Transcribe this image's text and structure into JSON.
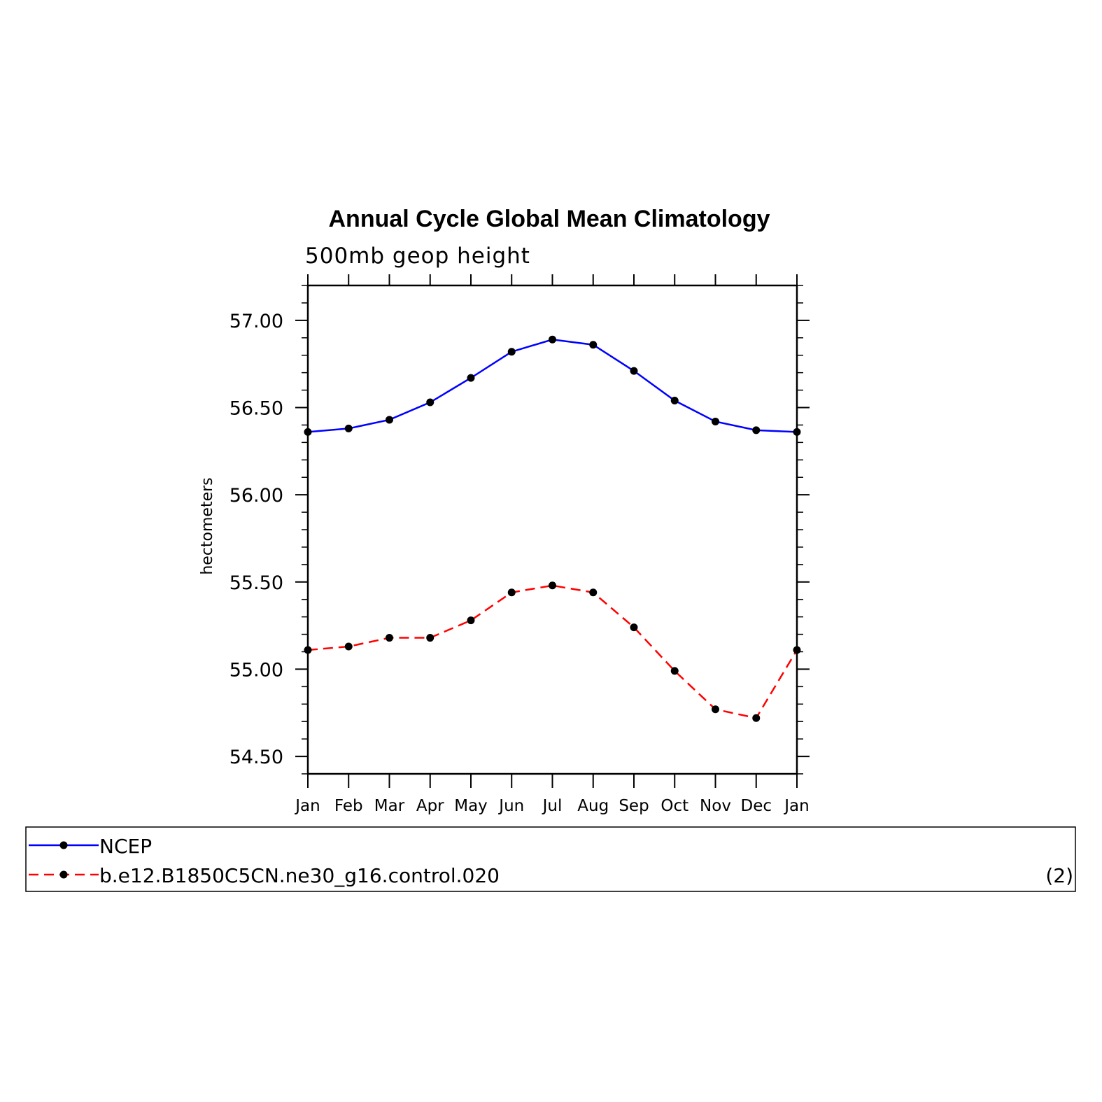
{
  "chart_data": {
    "type": "line",
    "title": "Annual Cycle Global Mean Climatology",
    "subtitle": "500mb geop height",
    "ylabel": "hectometers",
    "ylim": [
      54.4,
      57.2
    ],
    "yticks": [
      "57.00",
      "56.50",
      "56.00",
      "55.50",
      "55.00",
      "54.50"
    ],
    "categories": [
      "Jan",
      "Feb",
      "Mar",
      "Apr",
      "May",
      "Jun",
      "Jul",
      "Aug",
      "Sep",
      "Oct",
      "Nov",
      "Dec",
      "Jan"
    ],
    "series": [
      {
        "name": "NCEP",
        "color": "#0000ff",
        "dash": "solid",
        "values": [
          56.36,
          56.38,
          56.43,
          56.53,
          56.67,
          56.82,
          56.89,
          56.86,
          56.71,
          56.54,
          56.42,
          56.37,
          56.36
        ]
      },
      {
        "name": "b.e12.B1850C5CN.ne30_g16.control.020",
        "color": "#ff0000",
        "dash": "dashed",
        "values": [
          55.11,
          55.13,
          55.18,
          55.18,
          55.28,
          55.44,
          55.48,
          55.44,
          55.24,
          54.99,
          54.77,
          54.72,
          55.11
        ]
      }
    ],
    "legend_placement": "bottom",
    "legend_note": "(2)",
    "marker": "filled-circle",
    "marker_color": "#000000"
  }
}
